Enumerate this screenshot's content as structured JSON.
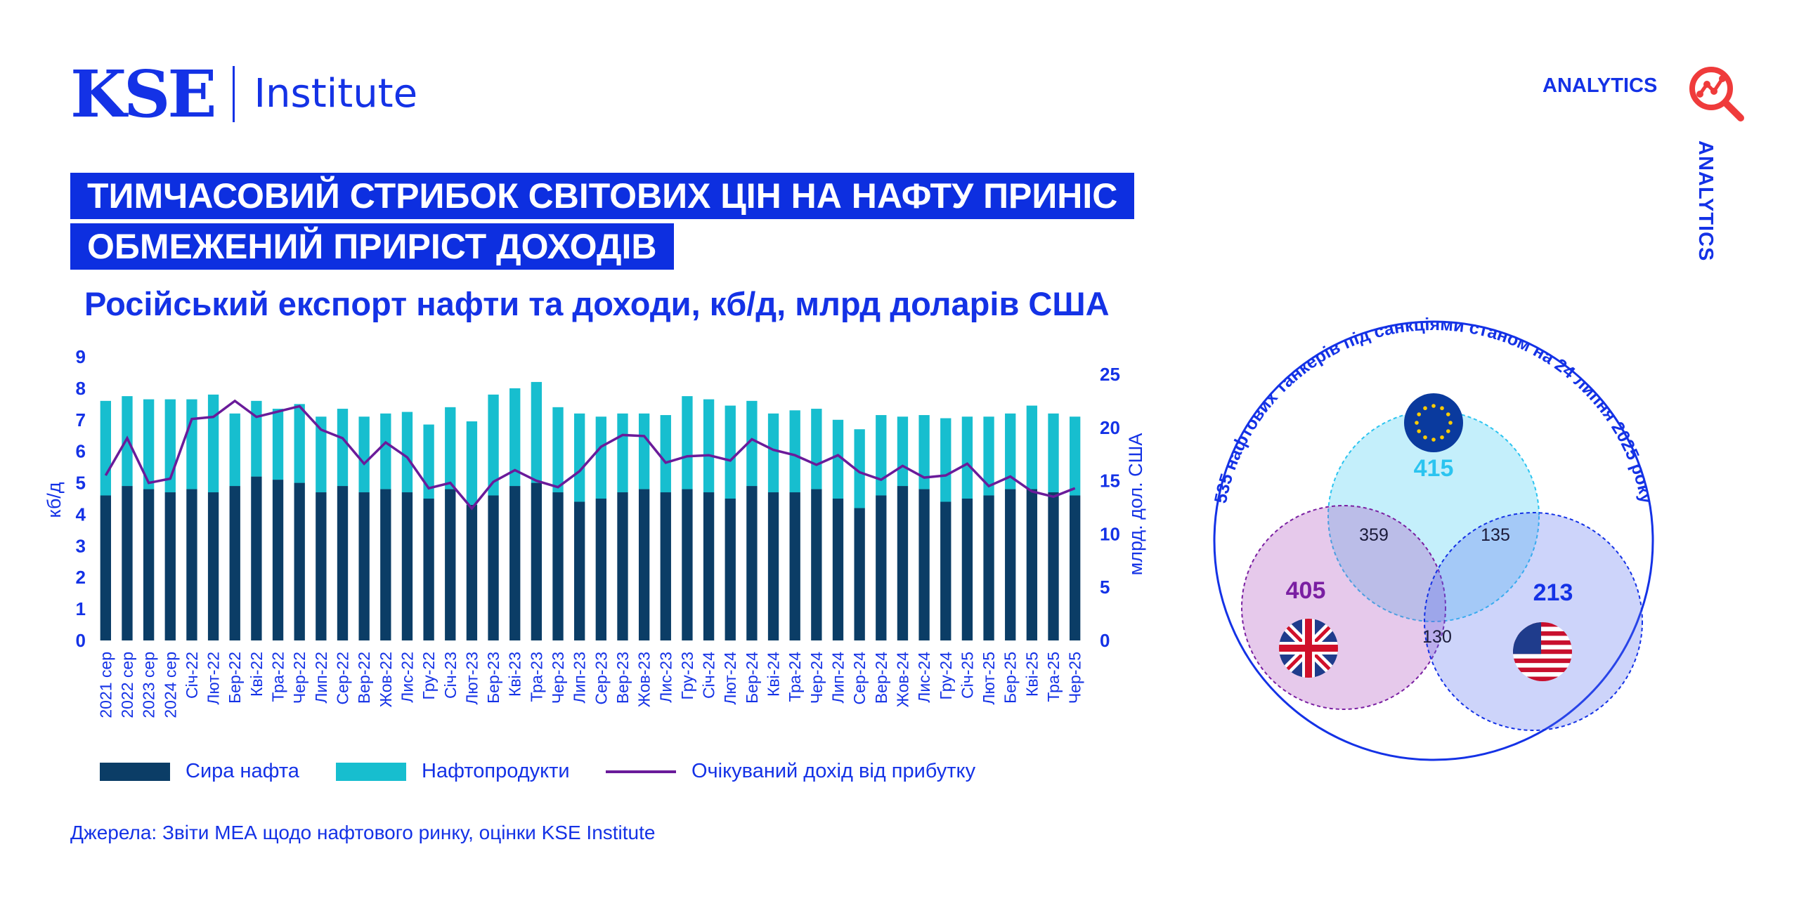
{
  "header": {
    "logo_kse": "KSE",
    "logo_institute": "Institute",
    "analytics": "ANALYTICS",
    "analytics_vertical": "ANALYTICS"
  },
  "title": {
    "line1": "ТИМЧАСОВИЙ СТРИБОК СВІТОВИХ ЦІН НА НАФТУ ПРИНІС",
    "line2": "ОБМЕЖЕНИЙ ПРИРІСТ ДОХОДІВ"
  },
  "subtitle": "Російський експорт нафти та доходи, кб/д, млрд доларів США",
  "legend": {
    "crude": "Сира нафта",
    "products": "Нафтопродукти",
    "revenue": "Очікуваний дохід від прибутку"
  },
  "source": "Джерела: Звіти МЕА щодо нафтового ринку, оцінки KSE Institute",
  "colors": {
    "brand_blue": "#1432e6",
    "crude": "#0b3d66",
    "products": "#17becf",
    "revenue_line": "#6a1b9a"
  },
  "chart_data": {
    "type": "bar",
    "stacked": true,
    "categories": [
      "2021 сер",
      "2022 сер",
      "2023 сер",
      "2024 сер",
      "Січ-22",
      "Лют-22",
      "Бер-22",
      "Кві-22",
      "Тра-22",
      "Чер-22",
      "Лип-22",
      "Сер-22",
      "Вер-22",
      "Жов-22",
      "Лис-22",
      "Гру-22",
      "Січ-23",
      "Лют-23",
      "Бер-23",
      "Кві-23",
      "Тра-23",
      "Чер-23",
      "Лип-23",
      "Сер-23",
      "Вер-23",
      "Жов-23",
      "Лис-23",
      "Гру-23",
      "Січ-24",
      "Лют-24",
      "Бер-24",
      "Кві-24",
      "Тра-24",
      "Чер-24",
      "Лип-24",
      "Сер-24",
      "Вер-24",
      "Жов-24",
      "Лис-24",
      "Гру-24",
      "Січ-25",
      "Лют-25",
      "Бер-25",
      "Кві-25",
      "Тра-25",
      "Чер-25"
    ],
    "series": [
      {
        "name": "Сира нафта",
        "axis": "left",
        "values": [
          4.6,
          4.9,
          4.8,
          4.7,
          4.8,
          4.7,
          4.9,
          5.2,
          5.1,
          5.0,
          4.7,
          4.9,
          4.7,
          4.8,
          4.7,
          4.5,
          4.8,
          4.3,
          4.6,
          4.9,
          5.0,
          4.7,
          4.4,
          4.5,
          4.7,
          4.8,
          4.7,
          4.8,
          4.7,
          4.5,
          4.9,
          4.7,
          4.7,
          4.8,
          4.5,
          4.2,
          4.6,
          4.9,
          4.8,
          4.4,
          4.5,
          4.6,
          4.8,
          4.8,
          4.7,
          4.6
        ]
      },
      {
        "name": "Нафтопродукти",
        "axis": "left",
        "values": [
          3.0,
          2.85,
          2.85,
          2.95,
          2.85,
          3.1,
          2.3,
          2.4,
          2.25,
          2.5,
          2.4,
          2.45,
          2.4,
          2.4,
          2.55,
          2.35,
          2.6,
          2.65,
          3.2,
          3.1,
          3.2,
          2.7,
          2.8,
          2.6,
          2.5,
          2.4,
          2.45,
          2.95,
          2.95,
          2.95,
          2.7,
          2.5,
          2.6,
          2.55,
          2.5,
          2.5,
          2.55,
          2.2,
          2.35,
          2.65,
          2.6,
          2.5,
          2.4,
          2.65,
          2.5,
          2.5
        ]
      },
      {
        "name": "Очікуваний дохід від прибутку",
        "axis": "right",
        "type": "line",
        "values": [
          15.5,
          19.0,
          14.8,
          15.2,
          20.8,
          21.0,
          22.5,
          21.0,
          21.5,
          22.0,
          19.8,
          19.0,
          16.6,
          18.6,
          17.2,
          14.3,
          14.8,
          12.4,
          14.9,
          16.0,
          15.0,
          14.4,
          15.9,
          18.2,
          19.3,
          19.2,
          16.7,
          17.3,
          17.4,
          16.9,
          18.9,
          17.9,
          17.4,
          16.5,
          17.4,
          15.8,
          15.1,
          16.4,
          15.3,
          15.5,
          16.6,
          14.5,
          15.4,
          14.0,
          13.5,
          14.3
        ]
      }
    ],
    "ylabel": "кб/д",
    "ylim": [
      0,
      9
    ],
    "yticks": [
      0,
      1,
      2,
      3,
      4,
      5,
      6,
      7,
      8,
      9
    ],
    "y2label": "млрд. дол. США",
    "y2lim": [
      0,
      26
    ],
    "y2ticks": [
      0,
      5,
      10,
      15,
      20,
      25
    ]
  },
  "venn": {
    "title": "535 нафтових танкерів під санкціями станом на 24 липня 2025 року",
    "eu": "415",
    "uk": "405",
    "us": "213",
    "uk_eu": "359",
    "eu_us": "135",
    "uk_us": "130",
    "eu_color": "#2bc4f0",
    "uk_color": "#7a1fa2",
    "us_color": "#1432e6"
  }
}
